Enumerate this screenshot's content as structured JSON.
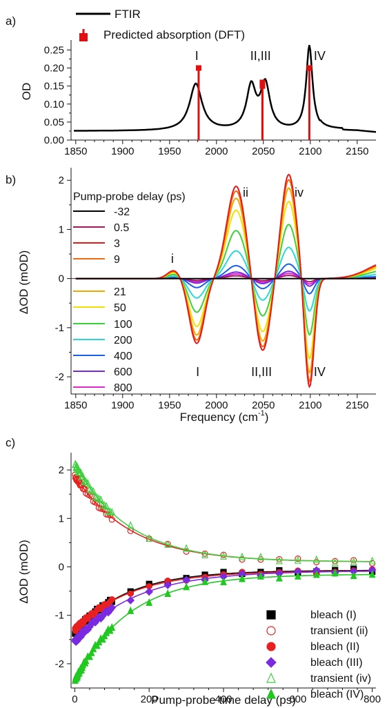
{
  "colors": {
    "ftir": "#000000",
    "dft": "#e01010"
  },
  "chart_data": [
    {
      "panel_label": "a)",
      "type": "line",
      "ylabel": "OD",
      "xlim": [
        1845,
        2170
      ],
      "ylim": [
        0.0,
        0.27
      ],
      "xticks": [
        1850,
        1900,
        1950,
        2000,
        2050,
        2100,
        2150
      ],
      "yticks": [
        0.0,
        0.05,
        0.1,
        0.15,
        0.2,
        0.25
      ],
      "ytick_labels": [
        "0.00",
        "0.05",
        "0.10",
        "0.15",
        "0.20",
        "0.25"
      ],
      "legend": [
        {
          "label": "FTIR",
          "kind": "line"
        },
        {
          "label": "Predicted absorption (DFT)",
          "kind": "stick"
        }
      ],
      "ftir_baseline": 0.025,
      "ftir_peaks": [
        {
          "center": 1978,
          "height": 0.13,
          "width": 8
        },
        {
          "center": 2037,
          "height": 0.118,
          "width": 6
        },
        {
          "center": 2052,
          "height": 0.125,
          "width": 6
        },
        {
          "center": 2099,
          "height": 0.235,
          "width": 4
        }
      ],
      "dft_sticks": [
        {
          "x": 1981,
          "y": 0.2
        },
        {
          "x": 2049,
          "y": 0.16
        },
        {
          "x": 2049,
          "y": 0.15
        },
        {
          "x": 2099,
          "y": 0.2
        }
      ],
      "annotations": [
        {
          "text": "I",
          "x": 1979,
          "y": 0.222
        },
        {
          "text": "II,III",
          "x": 2047,
          "y": 0.222
        },
        {
          "text": "IV",
          "x": 2110,
          "y": 0.222
        }
      ]
    },
    {
      "panel_label": "b)",
      "type": "line",
      "ylabel": "ΔOD (mOD)",
      "xlabel": "Frequency (cm",
      "xlabel_sup": "-1",
      "xlabel_tail": ")",
      "xlim": [
        1845,
        2170
      ],
      "ylim": [
        -2.35,
        2.2
      ],
      "xticks": [
        1850,
        1900,
        1950,
        2000,
        2050,
        2100,
        2150
      ],
      "yticks": [
        -2,
        -1,
        0,
        1,
        2
      ],
      "ytick_labels": [
        "-2",
        "-1",
        "0",
        "1",
        "2"
      ],
      "legend_title": "Pump-probe delay (ps)",
      "series": [
        {
          "name": "-32",
          "color": "#000000",
          "scale": 0.0
        },
        {
          "name": "0.5",
          "color": "#a0185a",
          "scale": 0.03
        },
        {
          "name": "3",
          "color": "#e81818",
          "scale": 1.0
        },
        {
          "name": "9",
          "color": "#f26a10",
          "scale": 0.95
        },
        {
          "name": "21",
          "color": "#f0a800",
          "scale": 0.87
        },
        {
          "name": "50",
          "color": "#f2e000",
          "scale": 0.74
        },
        {
          "name": "100",
          "color": "#3ad23a",
          "scale": 0.52
        },
        {
          "name": "200",
          "color": "#2ad8d8",
          "scale": 0.3
        },
        {
          "name": "400",
          "color": "#1a5ef0",
          "scale": 0.14
        },
        {
          "name": "600",
          "color": "#7a28e0",
          "scale": 0.07
        },
        {
          "name": "800",
          "color": "#e028d0",
          "scale": 0.05
        }
      ],
      "base_features": [
        {
          "center": 1955,
          "amp": 0.17,
          "width": 7
        },
        {
          "center": 1979,
          "amp": -1.32,
          "width": 8
        },
        {
          "center": 2021,
          "amp": 1.88,
          "width": 10
        },
        {
          "center": 2049,
          "amp": -1.5,
          "width": 8
        },
        {
          "center": 2077,
          "amp": 2.12,
          "width": 8
        },
        {
          "center": 2099,
          "amp": -2.25,
          "width": 5
        },
        {
          "center": 2185,
          "amp": 0.35,
          "width": 22
        }
      ],
      "annotations": [
        {
          "text": "i",
          "x": 1953,
          "y": 0.4
        },
        {
          "text": "ii",
          "x": 2031,
          "y": 1.75
        },
        {
          "text": "iv",
          "x": 2088,
          "y": 1.75
        },
        {
          "text": "I",
          "x": 1980,
          "y": -1.9
        },
        {
          "text": "II,III",
          "x": 2048,
          "y": -1.9
        },
        {
          "text": "IV",
          "x": 2110,
          "y": -1.9
        }
      ]
    },
    {
      "panel_label": "c)",
      "type": "scatter",
      "ylabel": "ΔOD (mOD)",
      "xlabel": "Pump-probe time delay (ps)",
      "xlim": [
        -10,
        810
      ],
      "ylim": [
        -2.5,
        2.3
      ],
      "xticks": [
        0,
        200,
        400,
        600,
        800
      ],
      "yticks": [
        -2,
        -1,
        0,
        1,
        2
      ],
      "ytick_labels": [
        "-2",
        "-1",
        "0",
        "1",
        "2"
      ],
      "delays": [
        1,
        2,
        3,
        4,
        5,
        6,
        7,
        8,
        9,
        10,
        12,
        14,
        16,
        18,
        20,
        22,
        25,
        28,
        30,
        35,
        40,
        45,
        50,
        55,
        60,
        65,
        70,
        75,
        80,
        85,
        90,
        95,
        100,
        150,
        200,
        250,
        300,
        350,
        400,
        450,
        500,
        550,
        600,
        650,
        700,
        750,
        800
      ],
      "series": [
        {
          "name": "bleach (I)",
          "marker": "square",
          "filled": true,
          "color": "#000000",
          "amp0": -1.35,
          "tau": 140,
          "offset": -0.07
        },
        {
          "name": "transient (ii)",
          "marker": "circle",
          "filled": false,
          "color": "#e82020",
          "amp0": 1.88,
          "tau": 150,
          "offset": 0.1
        },
        {
          "name": "bleach (II)",
          "marker": "circle",
          "filled": true,
          "color": "#e82020",
          "amp0": -1.3,
          "tau": 150,
          "offset": -0.08
        },
        {
          "name": "bleach (III)",
          "marker": "diamond",
          "filled": true,
          "color": "#7a2ae0",
          "amp0": -1.55,
          "tau": 160,
          "offset": -0.08
        },
        {
          "name": "transient (iv)",
          "marker": "triangle",
          "filled": false,
          "color": "#40d040",
          "amp0": 2.12,
          "tau": 145,
          "offset": 0.1
        },
        {
          "name": "bleach (IV)",
          "marker": "triangle",
          "filled": true,
          "color": "#20c820",
          "amp0": -2.35,
          "tau": 145,
          "offset": -0.15
        }
      ]
    }
  ]
}
